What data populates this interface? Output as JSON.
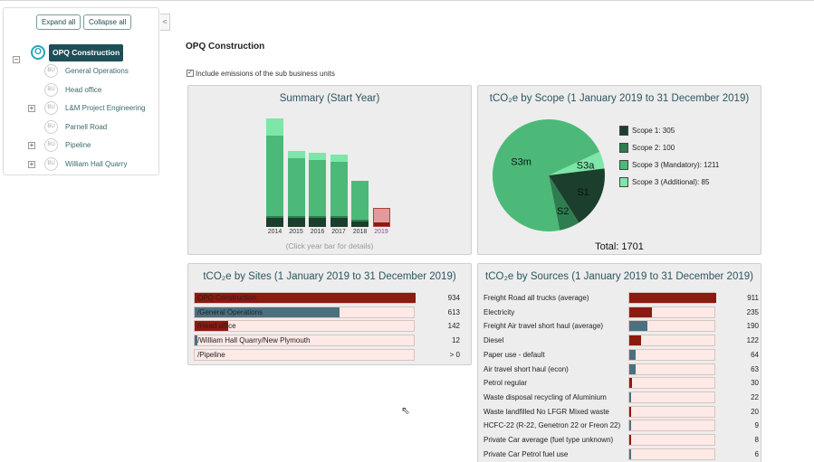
{
  "colors": {
    "tree_root_bg": "#1e4e57",
    "dark_red": "#8b1a10",
    "slate_blue": "#4b7080",
    "light_pink": "#fde9e6",
    "scope1": "#1b3f2c",
    "scope2": "#2e7d4f",
    "scope3m": "#4cb978",
    "scope3a": "#7de6a8"
  },
  "sidebar": {
    "expand_label": "Expand all",
    "collapse_label": "Collapse all",
    "collapse_tab": "<",
    "root": {
      "icon": "O",
      "label": "OPQ Construction"
    },
    "items": [
      {
        "icon": "BU",
        "label": "General Operations",
        "expandable": false
      },
      {
        "icon": "BU",
        "label": "Head office",
        "expandable": false
      },
      {
        "icon": "BU",
        "label": "L&M Project Engineering",
        "expandable": true
      },
      {
        "icon": "BU",
        "label": "Parnell Road",
        "expandable": false
      },
      {
        "icon": "BU",
        "label": "Pipeline",
        "expandable": true
      },
      {
        "icon": "BU",
        "label": "William Hall Quarry",
        "expandable": true
      }
    ]
  },
  "main": {
    "title": "OPQ Construction",
    "include_label": "Include emissions of the sub business units",
    "include_checked": true
  },
  "summary": {
    "title": "Summary (Start Year)",
    "hint": "(Click year bar for details)",
    "years": [
      "2014",
      "2015",
      "2016",
      "2017",
      "2018",
      "2019"
    ],
    "selected_year": "2019"
  },
  "scope": {
    "title": "tCO₂e by Scope (1 January 2019 to 31 December 2019)",
    "total": "Total: 1701",
    "slice_labels": {
      "s1": "S1",
      "s2": "S2",
      "s3m": "S3m",
      "s3a": "S3a"
    },
    "legend": [
      "Scope 1: 305",
      "Scope 2: 100",
      "Scope 3 (Mandatory): 1211",
      "Scope 3 (Additional): 85"
    ]
  },
  "chart_data": [
    {
      "type": "bar",
      "title": "Summary (Start Year)",
      "categories": [
        "2014",
        "2015",
        "2016",
        "2017",
        "2018",
        "2019"
      ],
      "series": [
        {
          "name": "Scope 1",
          "values": [
            100,
            95,
            95,
            95,
            60,
            20
          ]
        },
        {
          "name": "Scope 2",
          "values": [
            20,
            20,
            20,
            20,
            15,
            5
          ]
        },
        {
          "name": "Scope 3 (Mandatory)",
          "values": [
            860,
            620,
            600,
            580,
            420,
            0
          ]
        },
        {
          "name": "Scope 3 (Additional)",
          "values": [
            180,
            80,
            80,
            80,
            0,
            0
          ]
        }
      ],
      "ylim": [
        0,
        1200
      ]
    },
    {
      "type": "pie",
      "title": "tCO₂e by Scope (1 January 2019 to 31 December 2019)",
      "categories": [
        "Scope 1",
        "Scope 2",
        "Scope 3 (Mandatory)",
        "Scope 3 (Additional)"
      ],
      "values": [
        305,
        100,
        1211,
        85
      ]
    }
  ],
  "sites": {
    "title": "tCO₂e by Sites (1 January 2019 to 31 December 2019)",
    "max": 934,
    "rows": [
      {
        "label": "OPQ Construction",
        "value": 934,
        "display": "934",
        "color": "#8b1a10"
      },
      {
        "label": "/General Operations",
        "value": 613,
        "display": "613",
        "color": "#4b7080"
      },
      {
        "label": "/Head office",
        "value": 142,
        "display": "142",
        "color": "#8b1a10"
      },
      {
        "label": "/William Hall Quarry/New Plymouth",
        "value": 12,
        "display": "12",
        "color": "#4b7080"
      },
      {
        "label": "/Pipeline",
        "value": 0,
        "display": "> 0",
        "color": "#8b1a10"
      }
    ]
  },
  "sources": {
    "title": "tCO₂e by Sources (1 January 2019 to 31 December 2019)",
    "max": 911,
    "rows": [
      {
        "label": "Freight Road all trucks (average)",
        "value": 911,
        "display": "911",
        "color": "#8b1a10"
      },
      {
        "label": "Electricity",
        "value": 235,
        "display": "235",
        "color": "#8b1a10"
      },
      {
        "label": "Freight Air travel short haul (average)",
        "value": 190,
        "display": "190",
        "color": "#4b7080"
      },
      {
        "label": "Diesel",
        "value": 122,
        "display": "122",
        "color": "#8b1a10"
      },
      {
        "label": "Paper use - default",
        "value": 64,
        "display": "64",
        "color": "#4b7080"
      },
      {
        "label": "Air travel short haul (econ)",
        "value": 63,
        "display": "63",
        "color": "#4b7080"
      },
      {
        "label": "Petrol regular",
        "value": 30,
        "display": "30",
        "color": "#8b1a10"
      },
      {
        "label": "Waste disposal recycling of Aluminium",
        "value": 22,
        "display": "22",
        "color": "#4b7080"
      },
      {
        "label": "Waste landfilled No LFGR Mixed waste",
        "value": 20,
        "display": "20",
        "color": "#8b1a10"
      },
      {
        "label": "HCFC-22 (R-22, Genetron 22 or Freon 22)",
        "value": 9,
        "display": "9",
        "color": "#4b7080"
      },
      {
        "label": "Private Car average (fuel type unknown)",
        "value": 8,
        "display": "8",
        "color": "#8b1a10"
      },
      {
        "label": "Private Car Petrol fuel use",
        "value": 6,
        "display": "6",
        "color": "#4b7080"
      }
    ]
  }
}
